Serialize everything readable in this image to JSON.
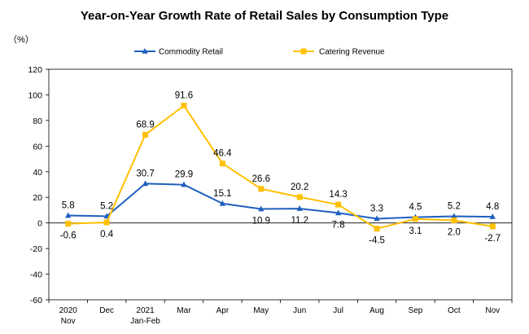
{
  "chart_data": {
    "type": "line",
    "title": "Year-on-Year Growth Rate of Retail Sales by Consumption Type",
    "unit_label": "（%）",
    "categories": [
      [
        "2020",
        "Nov"
      ],
      [
        "Dec"
      ],
      [
        "2021",
        "Jan-Feb"
      ],
      [
        "Mar"
      ],
      [
        "Apr"
      ],
      [
        "May"
      ],
      [
        "Jun"
      ],
      [
        "Jul"
      ],
      [
        "Aug"
      ],
      [
        "Sep"
      ],
      [
        "Oct"
      ],
      [
        "Nov"
      ]
    ],
    "ylim": [
      -60,
      120
    ],
    "yticks": [
      -60,
      -40,
      -20,
      0,
      20,
      40,
      60,
      80,
      100,
      120
    ],
    "legend_position": "top",
    "series": [
      {
        "name": "Commodity Retail",
        "color": "#1f5fbf",
        "marker": "triangle",
        "values": [
          5.8,
          5.2,
          30.7,
          29.9,
          15.1,
          10.9,
          11.2,
          7.8,
          3.3,
          4.5,
          5.2,
          4.8
        ],
        "labels": [
          "5.8",
          "5.2",
          "30.7",
          "29.9",
          "15.1",
          "10.9",
          "11.2",
          "7.8",
          "3.3",
          "4.5",
          "5.2",
          "4.8"
        ],
        "label_side": [
          "above",
          "above",
          "above",
          "above",
          "above",
          "below",
          "below",
          "below",
          "above",
          "above",
          "above",
          "above"
        ]
      },
      {
        "name": "Catering Revenue",
        "color": "#ffc000",
        "marker": "square",
        "values": [
          -0.6,
          0.4,
          68.9,
          91.6,
          46.4,
          26.6,
          20.2,
          14.3,
          -4.5,
          3.1,
          2.0,
          -2.7
        ],
        "labels": [
          "-0.6",
          "0.4",
          "68.9",
          "91.6",
          "46.4",
          "26.6",
          "20.2",
          "14.3",
          "-4.5",
          "3.1",
          "2.0",
          "-2.7"
        ],
        "label_side": [
          "below",
          "below",
          "above",
          "above",
          "above",
          "above",
          "above",
          "above",
          "below",
          "below",
          "below",
          "below"
        ]
      }
    ]
  }
}
